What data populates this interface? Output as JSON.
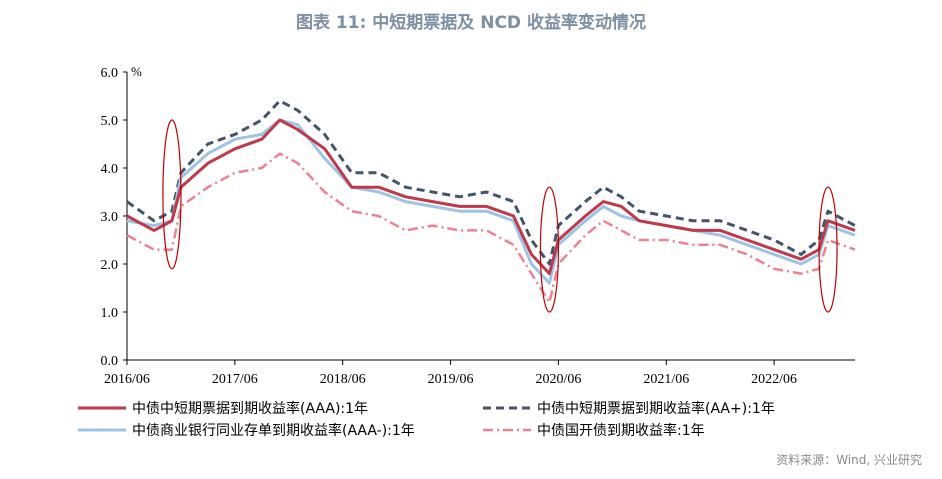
{
  "title": "图表 11: 中短期票据及 NCD 收益率变动情况",
  "source": "资料来源：Wind, 兴业研究",
  "chart_data": {
    "type": "line",
    "title": "图表 11: 中短期票据及 NCD 收益率变动情况",
    "xlabel": "",
    "ylabel": "%",
    "ylim": [
      0,
      6
    ],
    "yticks": [
      0.0,
      1.0,
      2.0,
      3.0,
      4.0,
      5.0,
      6.0
    ],
    "ytick_labels": [
      "0.0",
      "1.0",
      "2.0",
      "3.0",
      "4.0",
      "5.0",
      "6.0"
    ],
    "xlim": [
      "2016-06",
      "2023-03"
    ],
    "xtick_labels": [
      "2016/06",
      "2017/06",
      "2018/06",
      "2019/06",
      "2020/06",
      "2021/06",
      "2022/06"
    ],
    "grid": false,
    "legend_position": "bottom",
    "x": [
      "2016-06",
      "2016-09",
      "2016-11",
      "2016-12",
      "2017-03",
      "2017-06",
      "2017-09",
      "2017-11",
      "2018-01",
      "2018-04",
      "2018-07",
      "2018-10",
      "2019-01",
      "2019-04",
      "2019-07",
      "2019-10",
      "2020-01",
      "2020-03",
      "2020-05",
      "2020-06",
      "2020-09",
      "2020-11",
      "2021-01",
      "2021-03",
      "2021-06",
      "2021-09",
      "2021-12",
      "2022-03",
      "2022-06",
      "2022-09",
      "2022-11",
      "2022-12",
      "2023-03"
    ],
    "series": [
      {
        "name": "中债中短期票据到期收益率(AAA):1年",
        "color": "#c0394b",
        "style": "solid",
        "values": [
          3.0,
          2.7,
          2.9,
          3.6,
          4.1,
          4.4,
          4.6,
          5.0,
          4.8,
          4.4,
          3.6,
          3.6,
          3.4,
          3.3,
          3.2,
          3.2,
          3.0,
          2.2,
          1.8,
          2.5,
          3.0,
          3.3,
          3.2,
          2.9,
          2.8,
          2.7,
          2.7,
          2.5,
          2.3,
          2.1,
          2.3,
          2.9,
          2.7
        ]
      },
      {
        "name": "中债中短期票据到期收益率(AA+):1年",
        "color": "#44546a",
        "style": "dashed",
        "values": [
          3.3,
          2.9,
          3.1,
          3.9,
          4.5,
          4.7,
          5.0,
          5.4,
          5.2,
          4.7,
          3.9,
          3.9,
          3.6,
          3.5,
          3.4,
          3.5,
          3.3,
          2.5,
          2.0,
          2.8,
          3.3,
          3.6,
          3.4,
          3.1,
          3.0,
          2.9,
          2.9,
          2.7,
          2.5,
          2.2,
          2.5,
          3.1,
          2.8
        ]
      },
      {
        "name": "中债商业银行同业存单到期收益率(AAA-):1年",
        "color": "#9dc3e6",
        "style": "solid",
        "values": [
          2.9,
          2.8,
          2.9,
          3.8,
          4.3,
          4.6,
          4.7,
          5.0,
          4.9,
          4.2,
          3.6,
          3.5,
          3.3,
          3.2,
          3.1,
          3.1,
          2.9,
          2.0,
          1.6,
          2.4,
          2.9,
          3.2,
          3.0,
          2.9,
          2.8,
          2.7,
          2.6,
          2.4,
          2.2,
          2.0,
          2.2,
          2.8,
          2.6
        ]
      },
      {
        "name": "中债国开债到期收益率:1年",
        "color": "#f08090",
        "style": "dashdot",
        "values": [
          2.6,
          2.3,
          2.3,
          3.2,
          3.6,
          3.9,
          4.0,
          4.3,
          4.1,
          3.5,
          3.1,
          3.0,
          2.7,
          2.8,
          2.7,
          2.7,
          2.4,
          1.8,
          1.2,
          2.0,
          2.6,
          2.9,
          2.7,
          2.5,
          2.5,
          2.4,
          2.4,
          2.2,
          1.9,
          1.8,
          1.9,
          2.5,
          2.3
        ]
      }
    ],
    "annotations": [
      {
        "type": "ellipse",
        "x_center": "2016-11",
        "y_range": [
          1.9,
          5.0
        ]
      },
      {
        "type": "ellipse",
        "x_center": "2020-05",
        "y_range": [
          1.0,
          3.6
        ]
      },
      {
        "type": "ellipse",
        "x_center": "2022-12",
        "y_range": [
          1.0,
          3.6
        ]
      }
    ]
  }
}
